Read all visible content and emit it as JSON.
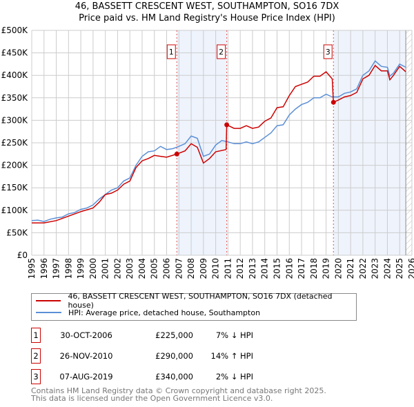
{
  "chart_data": {
    "type": "line",
    "title": "46, BASSETT CRESCENT WEST, SOUTHAMPTON, SO16 7DX",
    "subtitle": "Price paid vs. HM Land Registry's House Price Index (HPI)",
    "xlim": [
      1995,
      2026
    ],
    "ylim": [
      0,
      500000
    ],
    "x_ticks": [
      "1995",
      "1996",
      "1997",
      "1998",
      "1999",
      "2000",
      "2001",
      "2002",
      "2003",
      "2004",
      "2005",
      "2006",
      "2007",
      "2008",
      "2009",
      "2010",
      "2011",
      "2012",
      "2013",
      "2014",
      "2015",
      "2016",
      "2017",
      "2018",
      "2019",
      "2020",
      "2021",
      "2022",
      "2023",
      "2024",
      "2025",
      "2026"
    ],
    "y_ticks": [
      {
        "v": 0,
        "label": "£0"
      },
      {
        "v": 50000,
        "label": "£50K"
      },
      {
        "v": 100000,
        "label": "£100K"
      },
      {
        "v": 150000,
        "label": "£150K"
      },
      {
        "v": 200000,
        "label": "£200K"
      },
      {
        "v": 250000,
        "label": "£250K"
      },
      {
        "v": 300000,
        "label": "£300K"
      },
      {
        "v": 350000,
        "label": "£350K"
      },
      {
        "v": 400000,
        "label": "£400K"
      },
      {
        "v": 450000,
        "label": "£450K"
      },
      {
        "v": 500000,
        "label": "£500K"
      }
    ],
    "grid": true,
    "shaded_ranges": [
      [
        2006.83,
        2010.9
      ],
      [
        2019.6,
        2025.5
      ]
    ],
    "hatched_from": 2025.5,
    "series": [
      {
        "name": "46, BASSETT CRESCENT WEST, SOUTHAMPTON, SO16 7DX (detached house)",
        "color": "#cc0000",
        "x": [
          1995,
          1996,
          1997,
          1998,
          1999,
          2000,
          2000.5,
          2001,
          2001.5,
          2002,
          2002.5,
          2003,
          2003.5,
          2004,
          2004.5,
          2005,
          2005.5,
          2006,
          2006.83,
          2007.5,
          2008,
          2008.5,
          2009,
          2009.5,
          2010,
          2010.85,
          2010.9,
          2011.5,
          2012,
          2012.5,
          2013,
          2013.5,
          2014,
          2014.5,
          2015,
          2015.5,
          2016,
          2016.5,
          2017,
          2017.5,
          2018,
          2018.5,
          2019,
          2019.5,
          2019.6,
          2020,
          2020.5,
          2021,
          2021.5,
          2022,
          2022.5,
          2023,
          2023.5,
          2024,
          2024.2,
          2024.5,
          2025,
          2025.5
        ],
        "y": [
          72000,
          72000,
          77000,
          87000,
          97000,
          105000,
          118000,
          135000,
          138000,
          145000,
          158000,
          165000,
          195000,
          210000,
          215000,
          222000,
          220000,
          218000,
          225000,
          232000,
          248000,
          240000,
          205000,
          215000,
          230000,
          235000,
          290000,
          282000,
          282000,
          288000,
          282000,
          285000,
          298000,
          305000,
          328000,
          330000,
          355000,
          375000,
          380000,
          385000,
          398000,
          398000,
          408000,
          392000,
          340000,
          345000,
          352000,
          355000,
          362000,
          392000,
          400000,
          422000,
          410000,
          410000,
          390000,
          400000,
          420000,
          408000
        ]
      },
      {
        "name": "HPI: Average price, detached house, Southampton",
        "color": "#5b8fd6",
        "x": [
          1995,
          1995.5,
          1996,
          1996.5,
          1997,
          1997.5,
          1998,
          1998.5,
          1999,
          1999.5,
          2000,
          2000.5,
          2001,
          2001.5,
          2002,
          2002.5,
          2003,
          2003.5,
          2004,
          2004.5,
          2005,
          2005.5,
          2006,
          2006.5,
          2007,
          2007.5,
          2008,
          2008.5,
          2009,
          2009.5,
          2010,
          2010.5,
          2011,
          2011.5,
          2012,
          2012.5,
          2013,
          2013.5,
          2014,
          2014.5,
          2015,
          2015.5,
          2016,
          2016.5,
          2017,
          2017.5,
          2018,
          2018.5,
          2019,
          2019.5,
          2020,
          2020.5,
          2021,
          2021.5,
          2022,
          2022.5,
          2023,
          2023.5,
          2024,
          2024.2,
          2024.5,
          2025,
          2025.5
        ],
        "y": [
          77000,
          78000,
          75000,
          80000,
          83000,
          85000,
          92000,
          95000,
          102000,
          105000,
          112000,
          125000,
          135000,
          145000,
          150000,
          165000,
          172000,
          200000,
          220000,
          230000,
          232000,
          242000,
          235000,
          237000,
          242000,
          248000,
          265000,
          260000,
          220000,
          225000,
          245000,
          255000,
          252000,
          248000,
          248000,
          252000,
          248000,
          252000,
          262000,
          272000,
          288000,
          290000,
          312000,
          325000,
          335000,
          340000,
          350000,
          350000,
          358000,
          352000,
          352000,
          360000,
          363000,
          370000,
          400000,
          410000,
          432000,
          420000,
          418000,
          398000,
          405000,
          425000,
          418000
        ]
      }
    ],
    "sales": [
      {
        "num": "1",
        "x": 2006.83,
        "price": 225000,
        "date": "30-OCT-2006",
        "price_label": "£225,000",
        "hpi": "7% ↓ HPI"
      },
      {
        "num": "2",
        "x": 2010.9,
        "price": 290000,
        "date": "26-NOV-2010",
        "price_label": "£290,000",
        "hpi": "14% ↑ HPI"
      },
      {
        "num": "3",
        "x": 2019.6,
        "price": 340000,
        "date": "07-AUG-2019",
        "price_label": "£340,000",
        "hpi": "2% ↓ HPI"
      }
    ],
    "legend": {
      "placement": "below"
    }
  },
  "footer": {
    "line1": "Contains HM Land Registry data © Crown copyright and database right 2025.",
    "line2": "This data is licensed under the Open Government Licence v3.0."
  }
}
